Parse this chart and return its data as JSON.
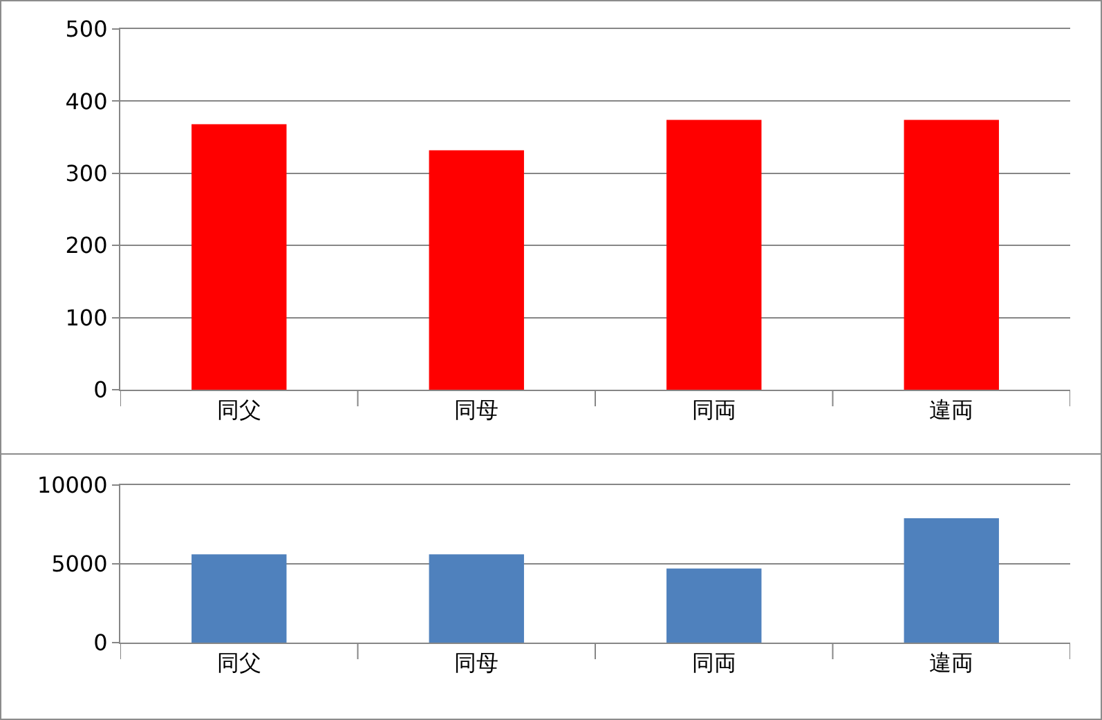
{
  "chart_data": [
    {
      "type": "bar",
      "categories": [
        "同父",
        "同母",
        "同両",
        "違両"
      ],
      "values": [
        368,
        332,
        374,
        374
      ],
      "color": "#ff0000",
      "ylim": [
        0,
        500
      ],
      "yticks": [
        0,
        100,
        200,
        300,
        400,
        500
      ],
      "grid": "y"
    },
    {
      "type": "bar",
      "categories": [
        "同父",
        "同母",
        "同両",
        "違両"
      ],
      "values": [
        5600,
        5600,
        4700,
        7900
      ],
      "color": "#4f81bd",
      "ylim": [
        0,
        10000
      ],
      "yticks": [
        0,
        5000,
        10000
      ],
      "grid": "y"
    }
  ]
}
